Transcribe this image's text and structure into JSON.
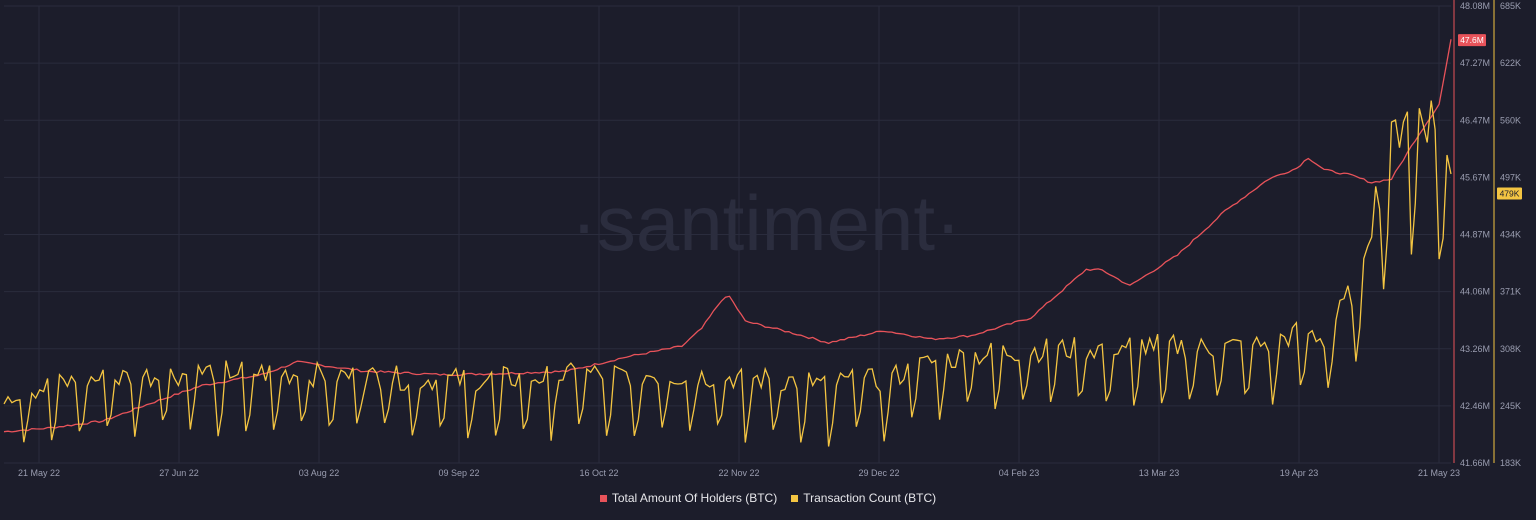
{
  "watermark": "·santiment·",
  "colors": {
    "background": "#1c1d2b",
    "holders": "#e8535a",
    "transactions": "#f4c542",
    "axis_text": "#9a9db0",
    "grid": "#2a2c3d"
  },
  "chart_data": {
    "type": "line",
    "x_tick_labels": [
      "21 May 22",
      "27 Jun 22",
      "03 Aug 22",
      "09 Sep 22",
      "16 Oct 22",
      "22 Nov 22",
      "29 Dec 22",
      "04 Feb 23",
      "13 Mar 23",
      "19 Apr 23",
      "21 May 23"
    ],
    "x_range": [
      "2022-05-21",
      "2023-05-21"
    ],
    "y_left_tick_labels": [
      "48.08M",
      "47.27M",
      "46.47M",
      "45.67M",
      "44.87M",
      "44.06M",
      "43.26M",
      "42.46M",
      "41.66M"
    ],
    "y_left_range": [
      41660000,
      48080000
    ],
    "y_right_tick_labels": [
      "685K",
      "622K",
      "560K",
      "497K",
      "434K",
      "371K",
      "308K",
      "245K",
      "183K"
    ],
    "y_right_range": [
      183000,
      685000
    ],
    "grid": true,
    "legend_position": "bottom",
    "last_value_labels": {
      "holders": "47.6M",
      "transactions": "479K"
    },
    "series": [
      {
        "name": "Total Amount Of Holders (BTC)",
        "axis": "left",
        "keypoints": [
          [
            "2022-05-21",
            42100000
          ],
          [
            "2022-06-01",
            42150000
          ],
          [
            "2022-06-15",
            42250000
          ],
          [
            "2022-06-27",
            42500000
          ],
          [
            "2022-07-10",
            42750000
          ],
          [
            "2022-07-25",
            42900000
          ],
          [
            "2022-08-03",
            43080000
          ],
          [
            "2022-08-20",
            42950000
          ],
          [
            "2022-09-09",
            42900000
          ],
          [
            "2022-09-25",
            42920000
          ],
          [
            "2022-10-10",
            42950000
          ],
          [
            "2022-10-25",
            43150000
          ],
          [
            "2022-11-08",
            43300000
          ],
          [
            "2022-11-13",
            43550000
          ],
          [
            "2022-11-18",
            43950000
          ],
          [
            "2022-11-20",
            44000000
          ],
          [
            "2022-11-24",
            43650000
          ],
          [
            "2022-12-05",
            43500000
          ],
          [
            "2022-12-15",
            43350000
          ],
          [
            "2022-12-29",
            43520000
          ],
          [
            "2023-01-10",
            43400000
          ],
          [
            "2023-01-20",
            43450000
          ],
          [
            "2023-02-04",
            43700000
          ],
          [
            "2023-02-18",
            44380000
          ],
          [
            "2023-02-22",
            44370000
          ],
          [
            "2023-03-01",
            44150000
          ],
          [
            "2023-03-13",
            44580000
          ],
          [
            "2023-03-25",
            45200000
          ],
          [
            "2023-04-05",
            45650000
          ],
          [
            "2023-04-12",
            45800000
          ],
          [
            "2023-04-15",
            45950000
          ],
          [
            "2023-04-19",
            45780000
          ],
          [
            "2023-04-26",
            45700000
          ],
          [
            "2023-05-01",
            45600000
          ],
          [
            "2023-05-06",
            45650000
          ],
          [
            "2023-05-12",
            46200000
          ],
          [
            "2023-05-18",
            46700000
          ],
          [
            "2023-05-21",
            47600000
          ]
        ]
      },
      {
        "name": "Transaction Count (BTC)",
        "axis": "right",
        "keypoints": [
          [
            "2022-05-21",
            250000
          ],
          [
            "2022-06-10",
            265000
          ],
          [
            "2022-06-27",
            270000
          ],
          [
            "2022-07-15",
            275000
          ],
          [
            "2022-08-03",
            272000
          ],
          [
            "2022-08-25",
            268000
          ],
          [
            "2022-09-09",
            265000
          ],
          [
            "2022-10-01",
            268000
          ],
          [
            "2022-10-16",
            272000
          ],
          [
            "2022-11-10",
            270000
          ],
          [
            "2022-11-22",
            268000
          ],
          [
            "2022-12-15",
            262000
          ],
          [
            "2022-12-29",
            265000
          ],
          [
            "2023-01-10",
            285000
          ],
          [
            "2023-01-25",
            295000
          ],
          [
            "2023-02-04",
            298000
          ],
          [
            "2023-02-20",
            300000
          ],
          [
            "2023-03-05",
            305000
          ],
          [
            "2023-03-20",
            300000
          ],
          [
            "2023-04-05",
            305000
          ],
          [
            "2023-04-14",
            320000
          ],
          [
            "2023-04-19",
            310000
          ],
          [
            "2023-04-26",
            360000
          ],
          [
            "2023-05-03",
            470000
          ],
          [
            "2023-05-10",
            560000
          ],
          [
            "2023-05-16",
            540000
          ],
          [
            "2023-05-21",
            479000
          ]
        ]
      }
    ]
  }
}
